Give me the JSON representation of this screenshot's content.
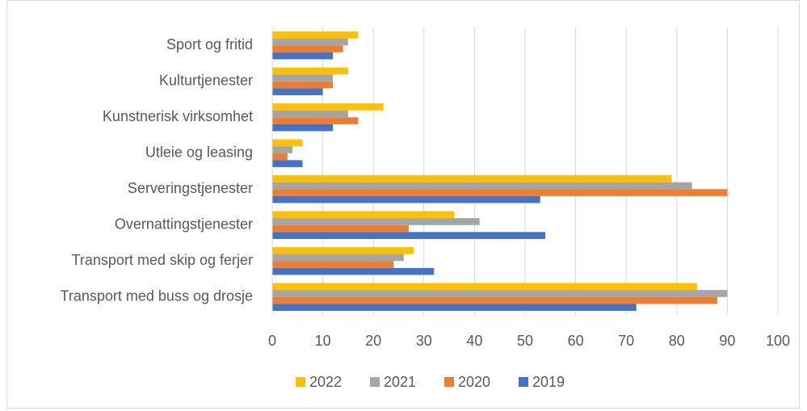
{
  "chart_data": {
    "type": "barh",
    "categories": [
      "Sport og fritid",
      "Kulturtjenester",
      "Kunstnerisk virksomhet",
      "Utleie og leasing",
      "Serveringstjenester",
      "Overnattingstjenester",
      "Transport med skip og ferjer",
      "Transport med buss og drosje"
    ],
    "series": [
      {
        "name": "2022",
        "color": "#ffc000",
        "values": [
          17,
          15,
          22,
          6,
          79,
          36,
          28,
          84
        ]
      },
      {
        "name": "2021",
        "color": "#a5a5a5",
        "values": [
          15,
          12,
          15,
          4,
          83,
          41,
          26,
          90
        ]
      },
      {
        "name": "2020",
        "color": "#ed7d31",
        "values": [
          14,
          12,
          17,
          3,
          90,
          27,
          24,
          88
        ]
      },
      {
        "name": "2019",
        "color": "#4472c4",
        "values": [
          12,
          10,
          12,
          6,
          53,
          54,
          32,
          72
        ]
      }
    ],
    "xlim": [
      0,
      100
    ],
    "xticks": [
      0,
      10,
      20,
      30,
      40,
      50,
      60,
      70,
      80,
      90,
      100
    ],
    "grid": true,
    "legend": "bottom"
  }
}
